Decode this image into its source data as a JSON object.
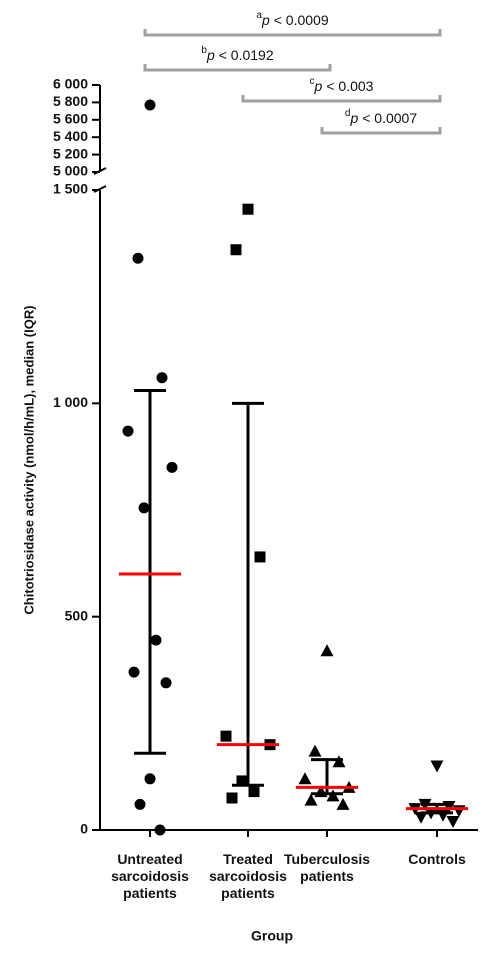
{
  "chart_data": {
    "type": "dot",
    "y_label": "Chitotriosidase activity (nmol/h/mL), median (IQR)",
    "x_label": "Group",
    "categories": [
      "Untreated\nsarcoidosis\npatients",
      "Treated\nsarcoidosis\npatients",
      "Tuberculosis\npatients",
      "Controls"
    ],
    "markers": [
      "circle",
      "square",
      "triangle-up",
      "triangle-down"
    ],
    "color": "#000000",
    "median_color": "#ff0000",
    "values": [
      [
        5770,
        1340,
        1060,
        935,
        850,
        755,
        445,
        370,
        345,
        120,
        60,
        0
      ],
      [
        1455,
        1360,
        640,
        220,
        200,
        115,
        90,
        75
      ],
      [
        420,
        185,
        160,
        120,
        100,
        90,
        80,
        70,
        60
      ],
      [
        150,
        60,
        55,
        50,
        45,
        40,
        35,
        30,
        20
      ]
    ],
    "medians": [
      600,
      200,
      100,
      50
    ],
    "q1": [
      180,
      105,
      85,
      40
    ],
    "q3": [
      1030,
      1000,
      165,
      60
    ],
    "ylim": [
      0,
      1500
    ],
    "yticks": [
      0,
      500,
      {
        "value": 1000,
        "label": "1 000"
      },
      {
        "value": 1500,
        "label": "1 500"
      }
    ],
    "ylim_upper": [
      5000,
      6000
    ],
    "yticks_upper": [
      {
        "value": 5000,
        "label": "5 000"
      },
      {
        "value": 5200,
        "label": "5 200"
      },
      {
        "value": 5400,
        "label": "5 400"
      },
      {
        "value": 5600,
        "label": "5 600"
      },
      {
        "value": 5800,
        "label": "5 800"
      },
      {
        "value": 6000,
        "label": "6 000"
      }
    ],
    "annotations": [
      {
        "letter": "a",
        "symbol": "p",
        "text": "< 0.0009",
        "from": 0,
        "to": 3
      },
      {
        "letter": "b",
        "symbol": "p",
        "text": "< 0.0192",
        "from": 0,
        "to": 2
      },
      {
        "letter": "c",
        "symbol": "p",
        "text": "< 0.003",
        "from": 1,
        "to": 3
      },
      {
        "letter": "d",
        "symbol": "p",
        "text": "< 0.0007",
        "from": 2,
        "to": 3
      }
    ],
    "bracket_color": "#a0a0a0"
  }
}
